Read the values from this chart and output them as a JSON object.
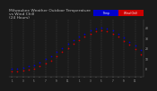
{
  "title": "Milwaukee Weather Outdoor Temperature\nvs Wind Chill\n(24 Hours)",
  "title_fontsize": 3.2,
  "bg_color": "#1a1a1a",
  "plot_bg_color": "#1a1a1a",
  "grid_color": "#555555",
  "temp_color": "#0000cc",
  "windchill_color": "#cc0000",
  "temp_data": [
    8,
    8,
    9,
    10,
    11,
    14,
    17,
    20,
    24,
    28,
    32,
    36,
    39,
    42,
    45,
    47,
    48,
    47,
    45,
    42,
    38,
    34,
    30,
    26
  ],
  "windchill_data": [
    5,
    5,
    6,
    7,
    8,
    10,
    13,
    16,
    20,
    24,
    28,
    32,
    36,
    39,
    42,
    44,
    45,
    44,
    42,
    39,
    35,
    31,
    27,
    22
  ],
  "hours": [
    0,
    1,
    2,
    3,
    4,
    5,
    6,
    7,
    8,
    9,
    10,
    11,
    12,
    13,
    14,
    15,
    16,
    17,
    18,
    19,
    20,
    21,
    22,
    23
  ],
  "x_tick_labels": [
    "1",
    "",
    "3",
    "",
    "5",
    "",
    "7",
    "",
    "9",
    "",
    "11",
    "",
    "1",
    "",
    "3",
    "",
    "5",
    "",
    "7",
    "",
    "9",
    "",
    "11",
    ""
  ],
  "ylim": [
    0,
    56
  ],
  "ytick_vals": [
    8,
    18,
    28,
    38,
    48
  ],
  "ytick_labels": [
    "8",
    "18",
    "28",
    "38",
    "48"
  ],
  "legend_temp_label": "Temp",
  "legend_wc_label": "Wind Chill",
  "legend_color_temp": "#0000cc",
  "legend_color_wc": "#cc0000",
  "tick_color": "#aaaaaa",
  "spine_color": "#555555",
  "dot_size": 1.5
}
